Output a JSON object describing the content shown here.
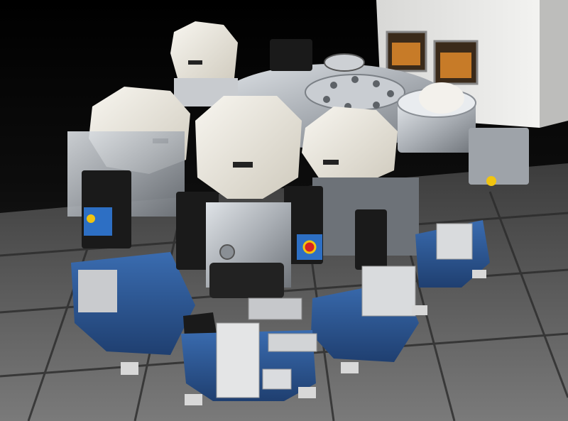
{
  "colors": {
    "background_top": "#050505",
    "floor_tile": "#6e6e6e",
    "floor_grout": "#3a3a3a",
    "enclosure_white": "#eeeeea",
    "cover_cream": "#ece8de",
    "cart_blue": "#2f5b9a",
    "cart_blue_dark": "#1f3f70",
    "steel": "#b9bec4",
    "steel_dark": "#6f747a",
    "black_component": "#1a1a1a",
    "button_blue": "#2d6fc4",
    "warning_yellow": "#f1c40f",
    "stop_red": "#d62222",
    "window_amber": "#e08a2c"
  },
  "objects": {
    "floor": "raised-floor-tiles",
    "enclosure": "white-cabinet-with-windows",
    "central_chamber": "transfer-chamber-lid",
    "modules": [
      "process-module-left",
      "process-module-back",
      "process-module-front",
      "process-module-right",
      "load-lock-module"
    ]
  }
}
